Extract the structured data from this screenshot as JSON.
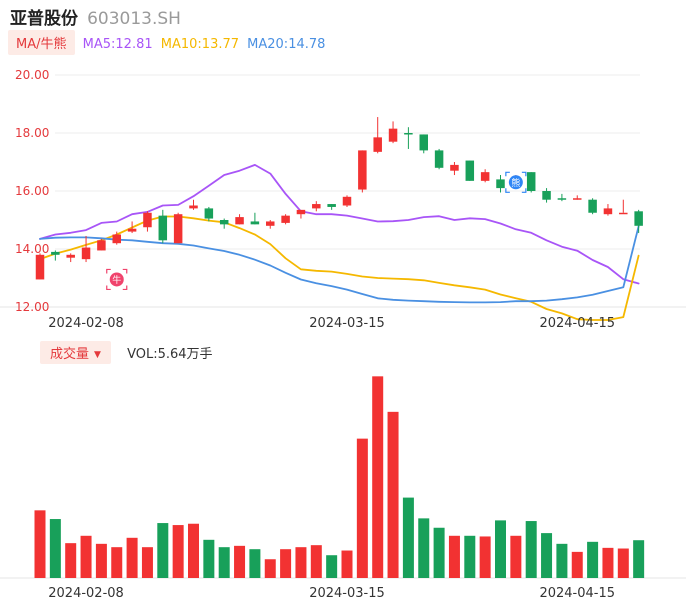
{
  "header": {
    "stock_name": "亚普股份",
    "stock_code": "603013.SH"
  },
  "ma_legend": {
    "label": "MA/牛熊",
    "items": [
      {
        "text": "MA5:12.81",
        "color": "#a855f7"
      },
      {
        "text": "MA10:13.77",
        "color": "#f5b800"
      },
      {
        "text": "MA20:14.78",
        "color": "#4a90e2"
      }
    ]
  },
  "volume_legend": {
    "label": "成交量",
    "value_text": "VOL:5.64万手"
  },
  "badges": [
    {
      "text": "牛",
      "index": 5,
      "price": 12.95,
      "color": "#f0436c"
    },
    {
      "text": "熊",
      "index": 31,
      "price": 16.3,
      "color": "#2f86f6"
    }
  ],
  "colors": {
    "up": "#f23232",
    "down": "#18a05a"
  },
  "chart_data": {
    "type": "candlestick",
    "price_axis": {
      "ticks": [
        20.0,
        18.0,
        16.0,
        14.0,
        12.0
      ],
      "labels": [
        "20.00",
        "18.00",
        "16.00",
        "14.00",
        "12.00"
      ],
      "ylim": [
        12.0,
        20.0
      ]
    },
    "x_ticks": [
      {
        "index": 3,
        "label": "2024-02-08"
      },
      {
        "index": 20,
        "label": "2024-03-15"
      },
      {
        "index": 35,
        "label": "2024-04-15"
      }
    ],
    "grid": true,
    "candles": [
      {
        "o": 12.95,
        "h": 13.85,
        "l": 12.95,
        "c": 13.8
      },
      {
        "o": 13.9,
        "h": 13.95,
        "l": 13.6,
        "c": 13.8
      },
      {
        "o": 13.7,
        "h": 13.85,
        "l": 13.55,
        "c": 13.8
      },
      {
        "o": 13.65,
        "h": 14.45,
        "l": 13.55,
        "c": 14.05
      },
      {
        "o": 13.95,
        "h": 14.35,
        "l": 13.95,
        "c": 14.3
      },
      {
        "o": 14.2,
        "h": 14.6,
        "l": 14.15,
        "c": 14.5
      },
      {
        "o": 14.6,
        "h": 14.95,
        "l": 14.55,
        "c": 14.7
      },
      {
        "o": 14.75,
        "h": 15.3,
        "l": 14.6,
        "c": 15.25
      },
      {
        "o": 15.15,
        "h": 15.35,
        "l": 14.2,
        "c": 14.3
      },
      {
        "o": 14.2,
        "h": 15.25,
        "l": 14.2,
        "c": 15.2
      },
      {
        "o": 15.4,
        "h": 15.7,
        "l": 15.35,
        "c": 15.5
      },
      {
        "o": 15.4,
        "h": 15.45,
        "l": 14.95,
        "c": 15.05
      },
      {
        "o": 15.0,
        "h": 15.05,
        "l": 14.7,
        "c": 14.85
      },
      {
        "o": 14.85,
        "h": 15.2,
        "l": 14.85,
        "c": 15.1
      },
      {
        "o": 14.95,
        "h": 15.25,
        "l": 14.85,
        "c": 14.85
      },
      {
        "o": 14.8,
        "h": 15.0,
        "l": 14.7,
        "c": 14.95
      },
      {
        "o": 14.9,
        "h": 15.2,
        "l": 14.85,
        "c": 15.15
      },
      {
        "o": 15.2,
        "h": 15.3,
        "l": 15.05,
        "c": 15.35
      },
      {
        "o": 15.4,
        "h": 15.65,
        "l": 15.3,
        "c": 15.55
      },
      {
        "o": 15.55,
        "h": 15.55,
        "l": 15.35,
        "c": 15.45
      },
      {
        "o": 15.5,
        "h": 15.85,
        "l": 15.45,
        "c": 15.8
      },
      {
        "o": 16.05,
        "h": 17.4,
        "l": 15.95,
        "c": 17.4
      },
      {
        "o": 17.35,
        "h": 18.55,
        "l": 17.3,
        "c": 17.85
      },
      {
        "o": 17.7,
        "h": 18.4,
        "l": 17.65,
        "c": 18.15
      },
      {
        "o": 18.0,
        "h": 18.2,
        "l": 17.45,
        "c": 17.95
      },
      {
        "o": 17.95,
        "h": 17.95,
        "l": 17.3,
        "c": 17.4
      },
      {
        "o": 17.4,
        "h": 17.45,
        "l": 16.75,
        "c": 16.8
      },
      {
        "o": 16.7,
        "h": 17.0,
        "l": 16.55,
        "c": 16.9
      },
      {
        "o": 17.05,
        "h": 17.05,
        "l": 16.35,
        "c": 16.35
      },
      {
        "o": 16.35,
        "h": 16.75,
        "l": 16.3,
        "c": 16.65
      },
      {
        "o": 16.4,
        "h": 16.55,
        "l": 15.95,
        "c": 16.1
      },
      {
        "o": 16.2,
        "h": 16.55,
        "l": 16.2,
        "c": 16.5
      },
      {
        "o": 16.65,
        "h": 16.65,
        "l": 15.95,
        "c": 16.0
      },
      {
        "o": 16.0,
        "h": 16.1,
        "l": 15.6,
        "c": 15.7
      },
      {
        "o": 15.75,
        "h": 15.9,
        "l": 15.65,
        "c": 15.7
      },
      {
        "o": 15.7,
        "h": 15.85,
        "l": 15.7,
        "c": 15.75
      },
      {
        "o": 15.7,
        "h": 15.75,
        "l": 15.2,
        "c": 15.25
      },
      {
        "o": 15.2,
        "h": 15.55,
        "l": 15.15,
        "c": 15.4
      },
      {
        "o": 15.25,
        "h": 15.7,
        "l": 15.25,
        "c": 15.25
      },
      {
        "o": 15.3,
        "h": 15.35,
        "l": 14.55,
        "c": 14.8
      }
    ],
    "ma_series": [
      {
        "name": "MA5",
        "color": "#a855f7",
        "values": [
          14.35,
          14.5,
          14.56,
          14.65,
          14.9,
          14.95,
          15.2,
          15.28,
          15.5,
          15.52,
          15.82,
          16.18,
          16.55,
          16.7,
          16.9,
          16.6,
          15.9,
          15.3,
          15.2,
          15.2,
          15.15,
          15.05,
          14.95,
          14.96,
          15.0,
          15.1,
          15.13,
          15.0,
          15.06,
          15.03,
          14.88,
          14.68,
          14.56,
          14.3,
          14.08,
          13.94,
          13.62,
          13.38,
          12.96,
          12.81
        ]
      },
      {
        "name": "MA10",
        "color": "#f5b800",
        "values": [
          13.65,
          13.84,
          13.98,
          14.14,
          14.3,
          14.5,
          14.74,
          14.98,
          15.12,
          15.12,
          15.06,
          14.98,
          14.92,
          14.72,
          14.5,
          14.17,
          13.68,
          13.3,
          13.25,
          13.22,
          13.14,
          13.05,
          13.0,
          12.98,
          12.96,
          12.92,
          12.83,
          12.75,
          12.68,
          12.6,
          12.43,
          12.3,
          12.18,
          11.93,
          11.78,
          11.58,
          11.55,
          11.55,
          11.65,
          13.77
        ]
      },
      {
        "name": "MA20",
        "color": "#4a90e2",
        "values": [
          14.35,
          14.39,
          14.4,
          14.4,
          14.37,
          14.32,
          14.3,
          14.25,
          14.2,
          14.18,
          14.12,
          14.02,
          13.93,
          13.8,
          13.63,
          13.43,
          13.18,
          12.95,
          12.82,
          12.72,
          12.6,
          12.45,
          12.3,
          12.25,
          12.22,
          12.2,
          12.18,
          12.17,
          12.16,
          12.16,
          12.17,
          12.2,
          12.2,
          12.22,
          12.27,
          12.33,
          12.42,
          12.55,
          12.68,
          14.78
        ]
      }
    ],
    "volume": {
      "unit": "万手",
      "values": [
        10.1,
        8.8,
        5.2,
        6.3,
        5.1,
        4.6,
        6.0,
        4.6,
        8.2,
        7.9,
        8.1,
        5.7,
        4.6,
        4.8,
        4.3,
        2.8,
        4.3,
        4.6,
        4.9,
        3.4,
        4.1,
        20.8,
        30.1,
        24.8,
        12.0,
        8.9,
        7.5,
        6.3,
        6.3,
        6.2,
        8.6,
        6.3,
        8.5,
        6.7,
        5.1,
        3.9,
        5.4,
        4.5,
        4.4,
        5.64
      ]
    }
  }
}
